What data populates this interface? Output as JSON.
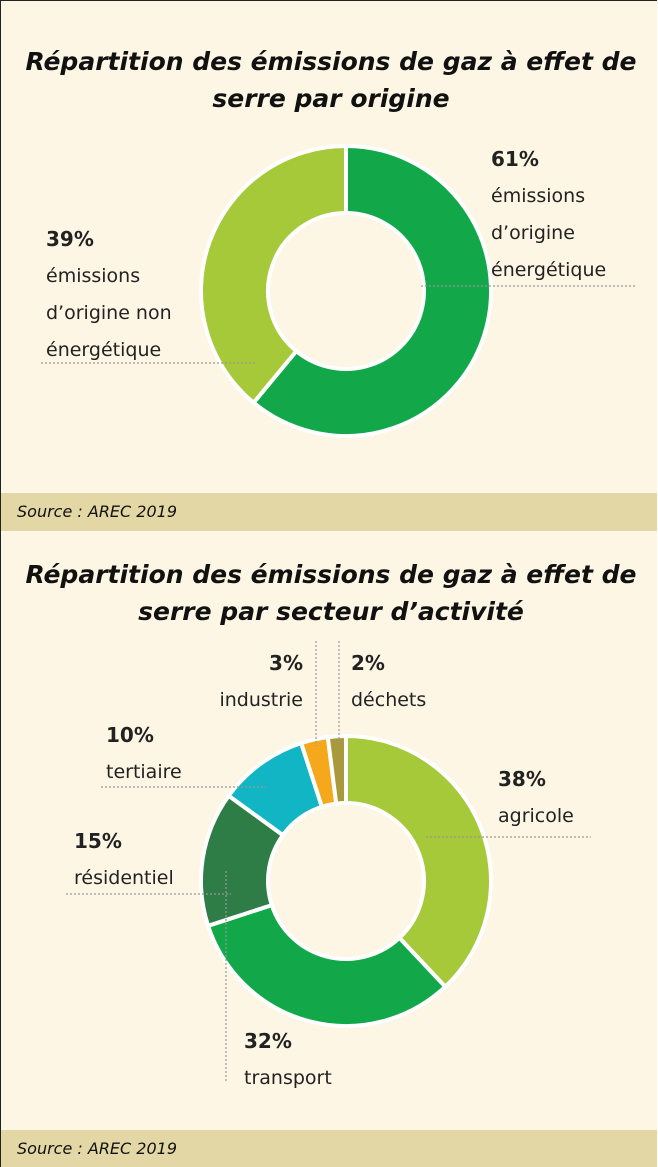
{
  "chart_data": [
    {
      "type": "donut",
      "title": "Répartition des émissions de gaz à effet de serre par origine",
      "categories": [
        "émissions d’origine énergétique",
        "émissions d’origine non énergétique"
      ],
      "values": [
        61,
        39
      ],
      "value_labels": [
        "61%",
        "39%"
      ],
      "colors": [
        "#12a84a",
        "#a6c93a"
      ],
      "source": "Source : AREC 2019"
    },
    {
      "type": "donut",
      "title": "Répartition des émissions de gaz à effet de serre par secteur d’activité",
      "categories": [
        "agricole",
        "transport",
        "résidentiel",
        "tertiaire",
        "industrie",
        "déchets"
      ],
      "values": [
        38,
        32,
        15,
        10,
        3,
        2
      ],
      "value_labels": [
        "38%",
        "32%",
        "15%",
        "10%",
        "3%",
        "2%"
      ],
      "colors": [
        "#a6c93a",
        "#12a84a",
        "#2e7d46",
        "#12b5c4",
        "#f6a81d",
        "#a89a3b"
      ],
      "source": "Source : AREC 2019"
    }
  ]
}
